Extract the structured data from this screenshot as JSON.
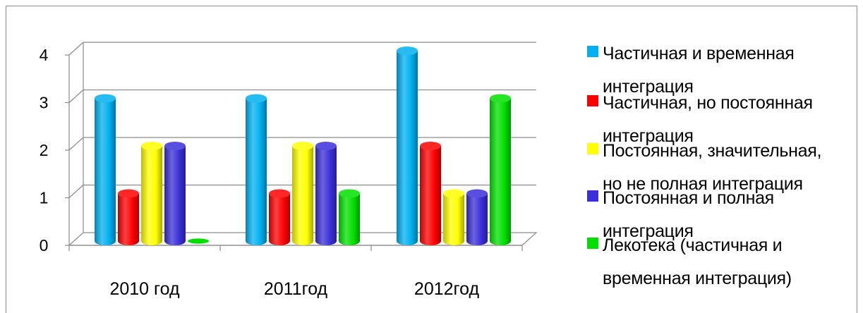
{
  "chart_data": {
    "type": "bar",
    "style": "3d-cylinder",
    "categories": [
      "2010 год",
      "2011год",
      "2012год"
    ],
    "series": [
      {
        "name": "Частичная и временная интеграция",
        "color": "#00b0f0",
        "values": [
          3,
          3,
          4
        ]
      },
      {
        "name": "Частичная, но постоянная интеграция",
        "color": "#ff0000",
        "values": [
          1,
          1,
          2
        ]
      },
      {
        "name": "Постоянная, значительная, но не полная интеграция",
        "color": "#ffff00",
        "values": [
          2,
          2,
          1
        ]
      },
      {
        "name": "Постоянная и полная интеграция",
        "color": "#3b2fd9",
        "values": [
          2,
          2,
          1
        ]
      },
      {
        "name": "Лекотека (частичная и временная интеграция)",
        "color": "#00e000",
        "values": [
          0,
          1,
          3
        ]
      }
    ],
    "y_ticks": [
      "0",
      "1",
      "2",
      "3",
      "4"
    ],
    "ylim": [
      0,
      4
    ],
    "grid": true,
    "legend": "right",
    "title": "",
    "xlabel": "",
    "ylabel": ""
  },
  "legend": {
    "items": [
      {
        "line1": "Частичная и временная",
        "line2": "интеграция",
        "color": "#00b0f0"
      },
      {
        "line1": "Частичная, но постоянная",
        "line2": "интеграция",
        "color": "#ff0000"
      },
      {
        "line1": "Постоянная, значительная,",
        "line2": "но не полная интеграция",
        "color": "#ffff00"
      },
      {
        "line1": " Постоянная и полная",
        "line2": "интеграция",
        "color": "#3b2fd9"
      },
      {
        "line1": "Лекотека (частичная и",
        "line2": "временная интеграция)",
        "color": "#00e000"
      }
    ]
  }
}
